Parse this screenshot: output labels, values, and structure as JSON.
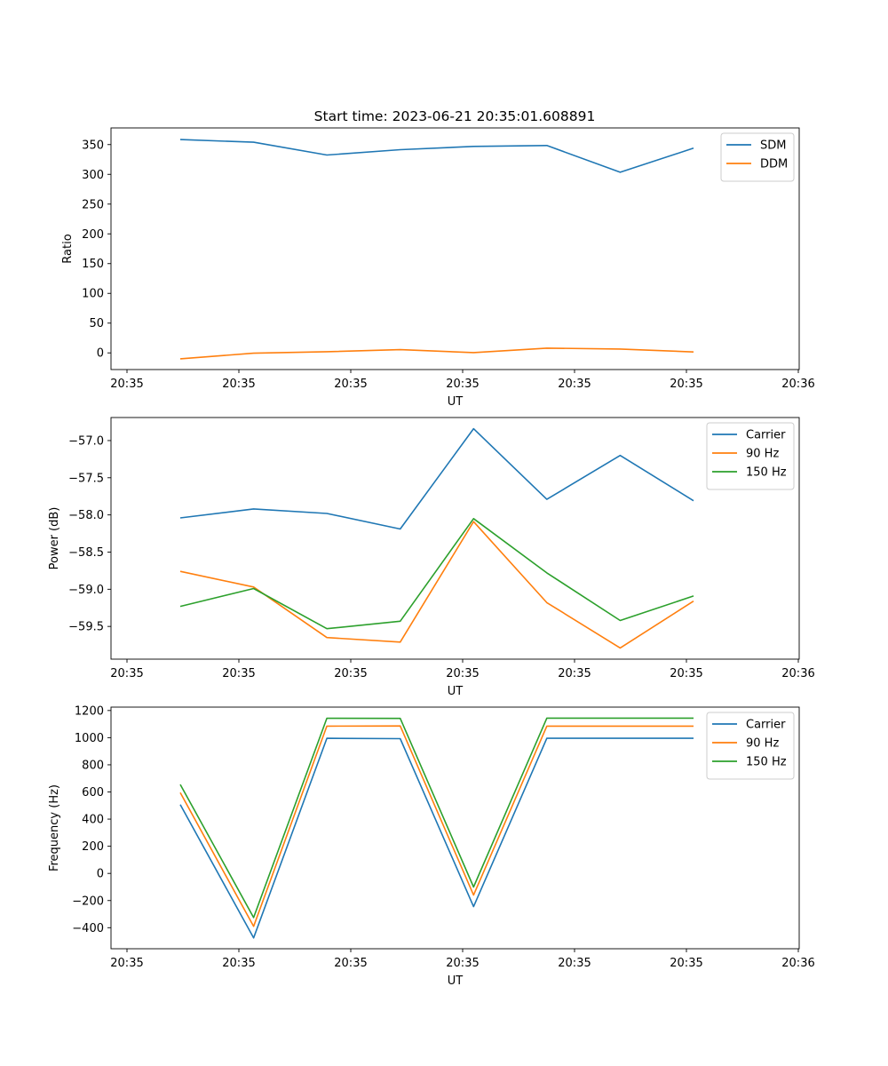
{
  "figure": {
    "title": "Start time: 2023-06-21 20:35:01.608891"
  },
  "colors": {
    "blue": "#1f77b4",
    "orange": "#ff7f0e",
    "green": "#2ca02c"
  },
  "chart_data": [
    {
      "type": "line",
      "title": "Start time: 2023-06-21 20:35:01.608891",
      "xlabel": "UT",
      "ylabel": "Ratio",
      "x_tick_labels": [
        "20:35",
        "20:35",
        "20:35",
        "20:35",
        "20:35",
        "20:35",
        "20:36"
      ],
      "yticks": [
        0,
        50,
        100,
        150,
        200,
        250,
        300,
        350
      ],
      "ylim": [
        -28,
        378
      ],
      "grid": false,
      "legend_position": "upper right",
      "x_index": [
        1,
        2,
        3,
        4,
        5,
        6,
        7,
        8
      ],
      "series": [
        {
          "name": "SDM",
          "color": "#1f77b4",
          "values": [
            358.5,
            354,
            332.5,
            341.5,
            347,
            348.5,
            303.5,
            344
          ]
        },
        {
          "name": "DDM",
          "color": "#ff7f0e",
          "values": [
            -10,
            -0.5,
            2,
            5.5,
            0.5,
            8,
            6.5,
            1.5
          ]
        }
      ]
    },
    {
      "type": "line",
      "xlabel": "UT",
      "ylabel": "Power (dB)",
      "x_tick_labels": [
        "20:35",
        "20:35",
        "20:35",
        "20:35",
        "20:35",
        "20:35",
        "20:36"
      ],
      "yticks": [
        -59.5,
        -59.0,
        -58.5,
        -58.0,
        -57.5,
        -57.0
      ],
      "ytick_labels": [
        "−59.5",
        "−59.0",
        "−58.5",
        "−58.0",
        "−57.5",
        "−57.0"
      ],
      "ylim": [
        -59.94,
        -56.69
      ],
      "grid": false,
      "legend_position": "upper right",
      "x_index": [
        1,
        2,
        3,
        4,
        5,
        6,
        7,
        8
      ],
      "series": [
        {
          "name": "Carrier",
          "color": "#1f77b4",
          "values": [
            -58.04,
            -57.92,
            -57.98,
            -58.19,
            -56.84,
            -57.79,
            -57.2,
            -57.81
          ]
        },
        {
          "name": "90 Hz",
          "color": "#ff7f0e",
          "values": [
            -58.76,
            -58.97,
            -59.65,
            -59.71,
            -58.09,
            -59.18,
            -59.79,
            -59.16
          ]
        },
        {
          "name": "150 Hz",
          "color": "#2ca02c",
          "values": [
            -59.23,
            -58.99,
            -59.53,
            -59.43,
            -58.05,
            -58.78,
            -59.42,
            -59.09
          ]
        }
      ]
    },
    {
      "type": "line",
      "xlabel": "UT",
      "ylabel": "Frequency (Hz)",
      "x_tick_labels": [
        "20:35",
        "20:35",
        "20:35",
        "20:35",
        "20:35",
        "20:35",
        "20:36"
      ],
      "yticks": [
        -400,
        -200,
        0,
        200,
        400,
        600,
        800,
        1000,
        1200
      ],
      "ytick_labels": [
        "−400",
        "−200",
        "0",
        "200",
        "400",
        "600",
        "800",
        "1000",
        "1200"
      ],
      "ylim": [
        -555,
        1225
      ],
      "grid": false,
      "legend_position": "upper right",
      "x_index": [
        1,
        2,
        3,
        4,
        5,
        6,
        7,
        8
      ],
      "series": [
        {
          "name": "Carrier",
          "color": "#1f77b4",
          "values": [
            507,
            -475,
            995,
            993,
            -245,
            995,
            995,
            995
          ]
        },
        {
          "name": "90 Hz",
          "color": "#ff7f0e",
          "values": [
            595,
            -390,
            1085,
            1086,
            -160,
            1085,
            1085,
            1085
          ]
        },
        {
          "name": "150 Hz",
          "color": "#2ca02c",
          "values": [
            655,
            -325,
            1143,
            1142,
            -100,
            1144,
            1144,
            1144
          ]
        }
      ]
    }
  ]
}
